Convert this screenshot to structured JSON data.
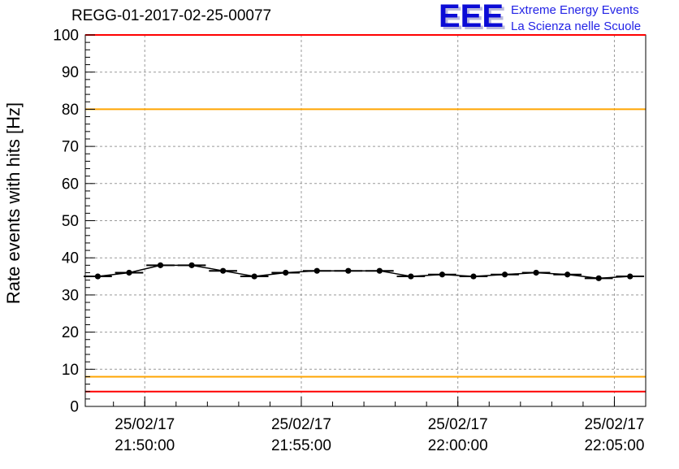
{
  "logo": {
    "text": "EEE",
    "line1": "Extreme Energy Events",
    "line2": "La Scienza nelle Scuole",
    "color": "#2323e6"
  },
  "chart_data": {
    "type": "line",
    "title": "REGG-01-2017-02-25-00077",
    "ylabel": "Rate events with hits [Hz]",
    "ylim": [
      0,
      100
    ],
    "ytick_step": 10,
    "ytick_minor_step": 2,
    "grid": true,
    "x_domain_minutes": [
      -1.9,
      16.0
    ],
    "xticks": [
      {
        "t": 0,
        "date": "25/02/17",
        "time": "21:50:00"
      },
      {
        "t": 5,
        "date": "25/02/17",
        "time": "21:55:00"
      },
      {
        "t": 10,
        "date": "25/02/17",
        "time": "22:00:00"
      },
      {
        "t": 15,
        "date": "25/02/17",
        "time": "22:05:00"
      }
    ],
    "series": [
      {
        "name": "rate-events-with-hits",
        "x": [
          -1.5,
          -0.5,
          0.5,
          1.5,
          2.5,
          3.5,
          4.5,
          5.5,
          6.5,
          7.5,
          8.5,
          9.5,
          10.5,
          11.5,
          12.5,
          13.5,
          14.5,
          15.5
        ],
        "values": [
          35,
          36,
          38,
          38,
          36.5,
          35,
          36,
          36.5,
          36.5,
          36.5,
          35,
          35.5,
          35,
          35.5,
          36,
          35.5,
          34.5,
          35
        ]
      }
    ],
    "x_error_half_width": 0.45,
    "thresholds": [
      {
        "y": 100,
        "color": "#ff0000"
      },
      {
        "y": 80,
        "color": "#ffa500"
      },
      {
        "y": 8,
        "color": "#ffa500"
      },
      {
        "y": 4,
        "color": "#ff0000"
      }
    ],
    "colors": {
      "marker": "#000000",
      "line": "#000000",
      "grid": "#999999",
      "frame": "#000000"
    }
  }
}
